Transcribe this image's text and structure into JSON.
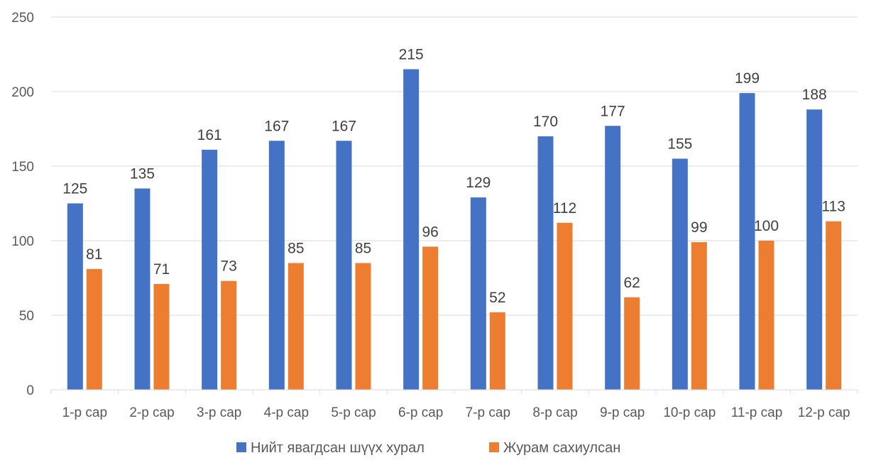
{
  "chart_data": {
    "type": "bar",
    "categories": [
      "1-р сар",
      "2-р сар",
      "3-р сар",
      "4-р сар",
      "5-р сар",
      "6-р сар",
      "7-р сар",
      "8-р сар",
      "9-р сар",
      "10-р сар",
      "11-р сар",
      "12-р сар"
    ],
    "series": [
      {
        "name": "Нийт явагдсан шүүх хурал",
        "color": "#4472C4",
        "values": [
          125,
          135,
          161,
          167,
          167,
          215,
          129,
          170,
          177,
          155,
          199,
          188
        ]
      },
      {
        "name": "Журам сахиулсан",
        "color": "#ED7D31",
        "values": [
          81,
          71,
          73,
          85,
          85,
          96,
          52,
          112,
          62,
          99,
          100,
          113
        ]
      }
    ],
    "ylim": [
      0,
      250
    ],
    "yticks": [
      0,
      50,
      100,
      150,
      200,
      250
    ],
    "grid": true,
    "legend_position": "bottom",
    "data_labels": true
  }
}
